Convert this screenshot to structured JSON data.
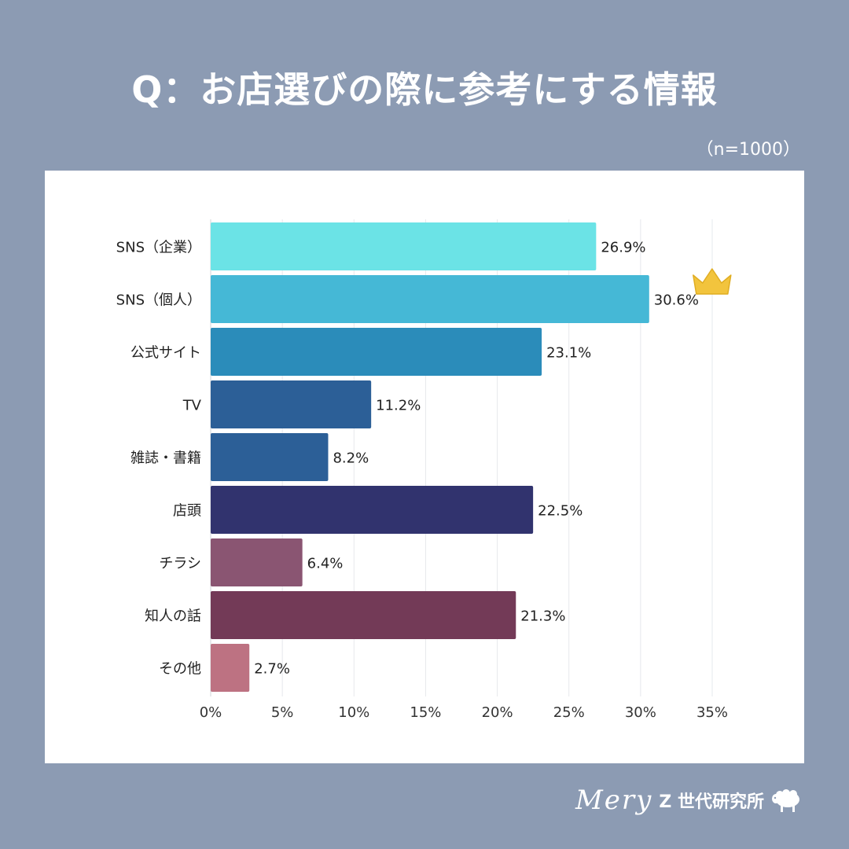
{
  "title": "Q：お店選びの際に参考にする情報",
  "sample_size": "（n=1000）",
  "footer": {
    "brand_script": "Mery",
    "lab_name": "Z 世代研究所",
    "mascot_icon": "sheep-icon"
  },
  "chart_data": {
    "type": "bar",
    "orientation": "horizontal",
    "title": "Q：お店選びの際に参考にする情報",
    "xlabel": "",
    "ylabel": "",
    "xlim": [
      0,
      35
    ],
    "xticks": [
      0,
      5,
      10,
      15,
      20,
      25,
      30,
      35
    ],
    "tick_suffix": "%",
    "grid": true,
    "categories": [
      "SNS（企業）",
      "SNS（個人）",
      "公式サイト",
      "TV",
      "雑誌・書籍",
      "店頭",
      "チラシ",
      "知人の話",
      "その他"
    ],
    "values": [
      26.9,
      30.6,
      23.1,
      11.2,
      8.2,
      22.5,
      6.4,
      21.3,
      2.7
    ],
    "value_labels": [
      "26.9%",
      "30.6%",
      "23.1%",
      "11.2%",
      "8.2%",
      "22.5%",
      "6.4%",
      "21.3%",
      "2.7%"
    ],
    "colors": [
      "#6be3e6",
      "#45b8d6",
      "#2b8cba",
      "#2c5f97",
      "#2c5f97",
      "#31336e",
      "#8a5572",
      "#733a57",
      "#bd7282"
    ],
    "highlight": {
      "category": "SNS（個人）",
      "icon": "crown-icon",
      "color": "#f2c43d"
    }
  }
}
